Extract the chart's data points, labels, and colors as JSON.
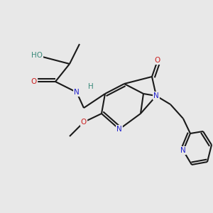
{
  "background_color": "#e8e8e8",
  "bond_color": "#1a1a1a",
  "bond_width": 1.5,
  "figsize": [
    3.0,
    3.0
  ],
  "dpi": 100,
  "atom_bg": "#e8e8e8",
  "colors": {
    "C": "#1a1a1a",
    "N": "#2020cc",
    "O": "#cc2020",
    "HO": "#3a8a7a",
    "H": "#3a8a7a"
  }
}
